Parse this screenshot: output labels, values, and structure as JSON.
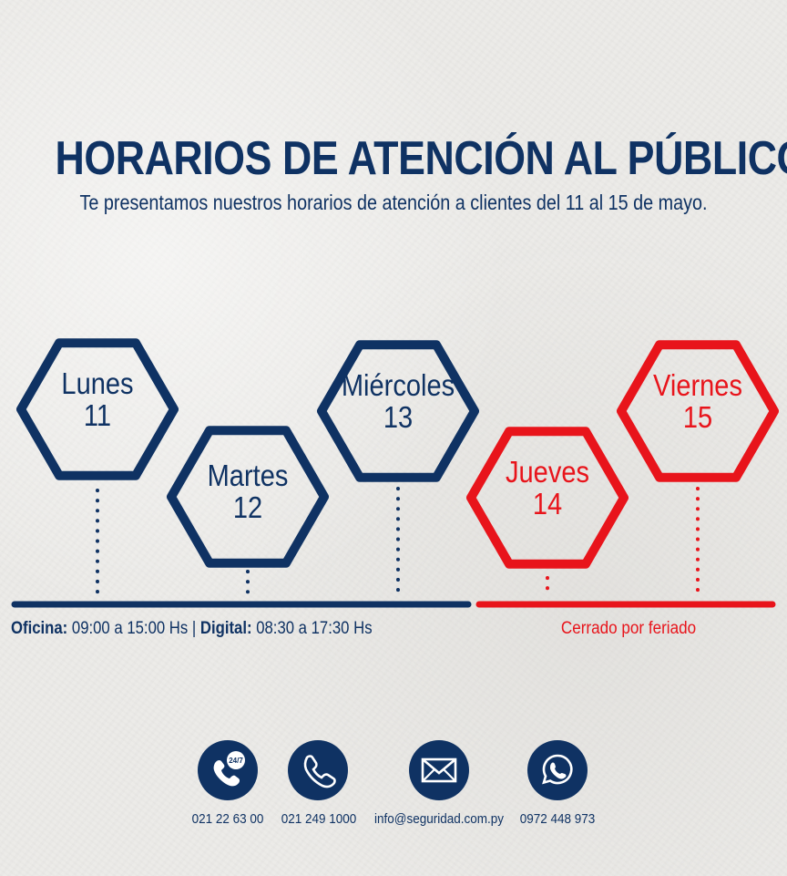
{
  "colors": {
    "navy": "#0f3263",
    "red": "#e8141b",
    "background": "#ecebe8",
    "icon_glyph": "#ffffff"
  },
  "header": {
    "title": "HORARIOS DE ATENCIÓN AL PÚBLICO",
    "subtitle": "Te presentamos nuestros horarios de atención a clientes del 11 al 15 de mayo."
  },
  "days": [
    {
      "name": "Lunes",
      "number": "11",
      "status": "open"
    },
    {
      "name": "Martes",
      "number": "12",
      "status": "open"
    },
    {
      "name": "Miércoles",
      "number": "13",
      "status": "open"
    },
    {
      "name": "Jueves",
      "number": "14",
      "status": "closed"
    },
    {
      "name": "Viernes",
      "number": "15",
      "status": "closed"
    }
  ],
  "schedule": {
    "office_label": "Oficina:",
    "office_hours": "09:00 a 15:00 Hs",
    "separator": "|",
    "digital_label": "Digital:",
    "digital_hours": "08:30 a 17:30 Hs",
    "closed_text": "Cerrado por feriado"
  },
  "contacts": [
    {
      "icon": "phone-24-7-icon",
      "badge": "24/7",
      "label": "021 22 63 00"
    },
    {
      "icon": "phone-icon",
      "label": "021 249 1000"
    },
    {
      "icon": "envelope-icon",
      "label": "info@seguridad.com.py"
    },
    {
      "icon": "whatsapp-icon",
      "label": "0972 448 973"
    }
  ]
}
